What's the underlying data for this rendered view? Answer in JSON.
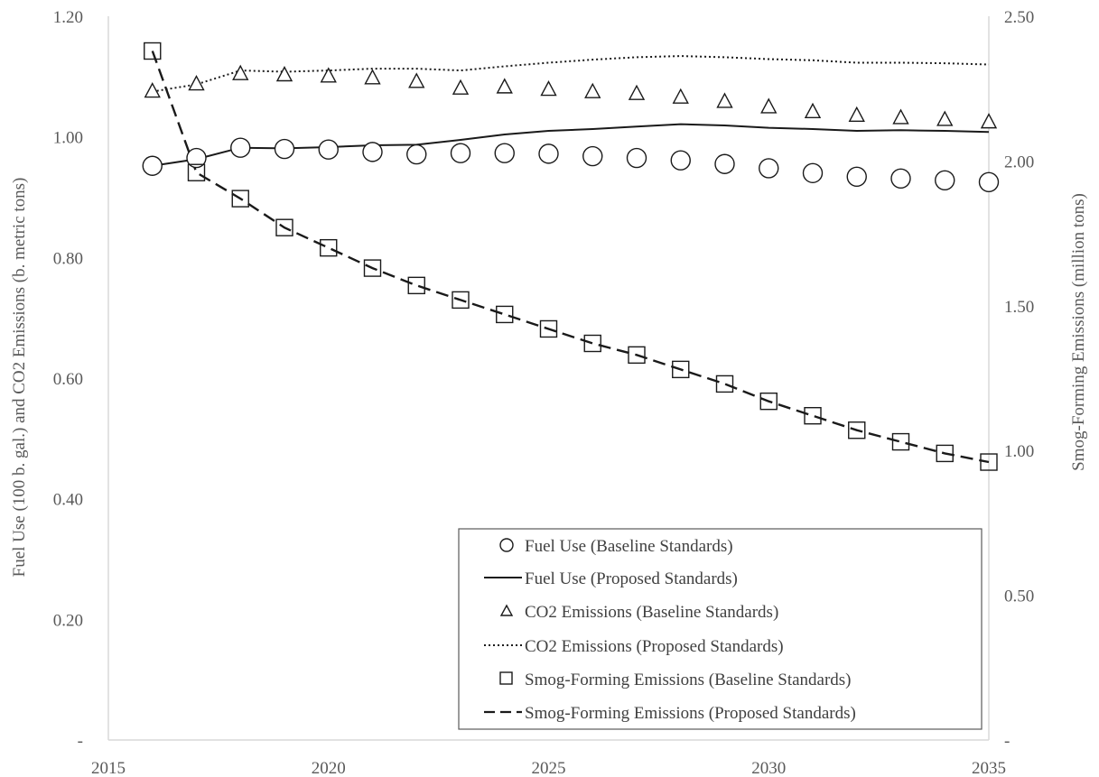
{
  "chart_data": {
    "type": "line",
    "title": "",
    "xlabel": "",
    "ylabel": "Fuel Use (100 b. gal.) and CO2 Emissions (b. metric tons)",
    "y2label": "Smog-Forming Emissions (million tons)",
    "xlim": [
      2015,
      2035
    ],
    "ylim": [
      0,
      1.2
    ],
    "y2lim": [
      0,
      2.5
    ],
    "x_ticks": [
      "2015",
      "2020",
      "2025",
      "2030",
      "2035"
    ],
    "y_ticks": [
      "-",
      "0.20",
      "0.40",
      "0.60",
      "0.80",
      "1.00",
      "1.20"
    ],
    "y2_ticks": [
      "-",
      "0.50",
      "1.00",
      "1.50",
      "2.00",
      "2.50"
    ],
    "grid": false,
    "legend_position": "bottom-right",
    "x": [
      2016,
      2017,
      2018,
      2019,
      2020,
      2021,
      2022,
      2023,
      2024,
      2025,
      2026,
      2027,
      2028,
      2029,
      2030,
      2031,
      2032,
      2033,
      2034,
      2035
    ],
    "series": [
      {
        "name": "Fuel Use (Baseline Standards)",
        "axis": "left",
        "style": "circle-markers",
        "values": [
          0.952,
          0.965,
          0.982,
          0.98,
          0.979,
          0.975,
          0.971,
          0.973,
          0.973,
          0.972,
          0.968,
          0.965,
          0.961,
          0.955,
          0.948,
          0.94,
          0.934,
          0.931,
          0.928,
          0.925
        ]
      },
      {
        "name": "Fuel Use (Proposed Standards)",
        "axis": "left",
        "style": "solid-line",
        "values": [
          0.952,
          0.963,
          0.982,
          0.981,
          0.983,
          0.986,
          0.987,
          0.995,
          1.004,
          1.01,
          1.013,
          1.017,
          1.021,
          1.019,
          1.015,
          1.013,
          1.01,
          1.011,
          1.01,
          1.008
        ]
      },
      {
        "name": "CO2 Emissions (Baseline Standards)",
        "axis": "left",
        "style": "triangle-markers",
        "values": [
          1.075,
          1.087,
          1.104,
          1.102,
          1.1,
          1.097,
          1.091,
          1.08,
          1.082,
          1.078,
          1.074,
          1.071,
          1.065,
          1.058,
          1.049,
          1.041,
          1.035,
          1.031,
          1.028,
          1.024
        ]
      },
      {
        "name": "CO2 Emissions (Proposed Standards)",
        "axis": "left",
        "style": "dotted-line",
        "values": [
          1.075,
          1.087,
          1.11,
          1.108,
          1.11,
          1.113,
          1.113,
          1.11,
          1.117,
          1.123,
          1.128,
          1.132,
          1.134,
          1.132,
          1.129,
          1.127,
          1.123,
          1.123,
          1.122,
          1.12
        ]
      },
      {
        "name": "Smog-Forming Emissions (Baseline Standards)",
        "axis": "right",
        "style": "square-markers",
        "values": [
          2.38,
          1.96,
          1.87,
          1.77,
          1.7,
          1.63,
          1.57,
          1.52,
          1.47,
          1.42,
          1.37,
          1.33,
          1.28,
          1.23,
          1.17,
          1.12,
          1.07,
          1.03,
          0.99,
          0.96
        ]
      },
      {
        "name": "Smog-Forming Emissions (Proposed Standards)",
        "axis": "right",
        "style": "dashed-line",
        "values": [
          2.38,
          1.96,
          1.87,
          1.77,
          1.7,
          1.63,
          1.57,
          1.52,
          1.47,
          1.42,
          1.37,
          1.33,
          1.28,
          1.23,
          1.17,
          1.12,
          1.07,
          1.03,
          0.99,
          0.96
        ]
      }
    ]
  },
  "colors": {
    "series": "#1a1a1a",
    "axis": "#d9d9d9",
    "tick_text": "#595959",
    "legend_border": "#595959"
  }
}
